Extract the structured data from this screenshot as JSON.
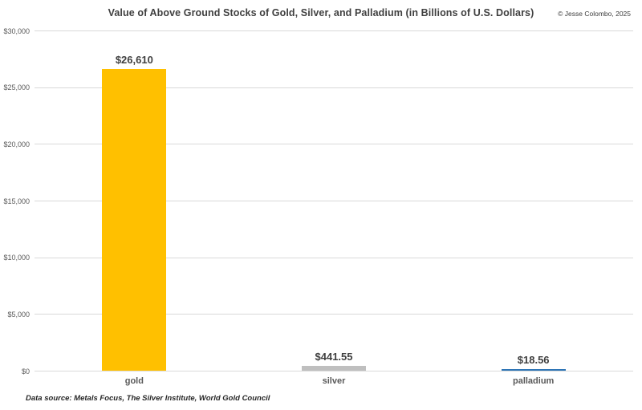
{
  "header": {
    "title": "Value of Above Ground Stocks of Gold, Silver, and Palladium (in Billions of U.S. Dollars)",
    "copyright": "© Jesse Colombo, 2025"
  },
  "footer": {
    "data_source": "Data source: Metals Focus, The Silver Institute, World Gold Council"
  },
  "chart_data": {
    "type": "bar",
    "title": "Value of Above Ground Stocks of Gold, Silver, and Palladium (in Billions of U.S. Dollars)",
    "categories": [
      "gold",
      "silver",
      "palladium"
    ],
    "values": [
      26610,
      441.55,
      18.56
    ],
    "value_labels": [
      "$26,610",
      "$441.55",
      "$18.56"
    ],
    "bar_colors": [
      "#FFC000",
      "#BFBFBF",
      "#2E75B6"
    ],
    "xlabel": "",
    "ylabel": "",
    "ylim": [
      0,
      30000
    ],
    "ytick_step": 5000,
    "ytick_labels": [
      "$0",
      "$5,000",
      "$10,000",
      "$15,000",
      "$20,000",
      "$25,000",
      "$30,000"
    ],
    "grid": true,
    "legend": false,
    "colors": {
      "gridline": "#D9D9D9",
      "axis_text": "#595959",
      "title_text": "#404040",
      "value_label_text": "#3F3F3F"
    }
  }
}
